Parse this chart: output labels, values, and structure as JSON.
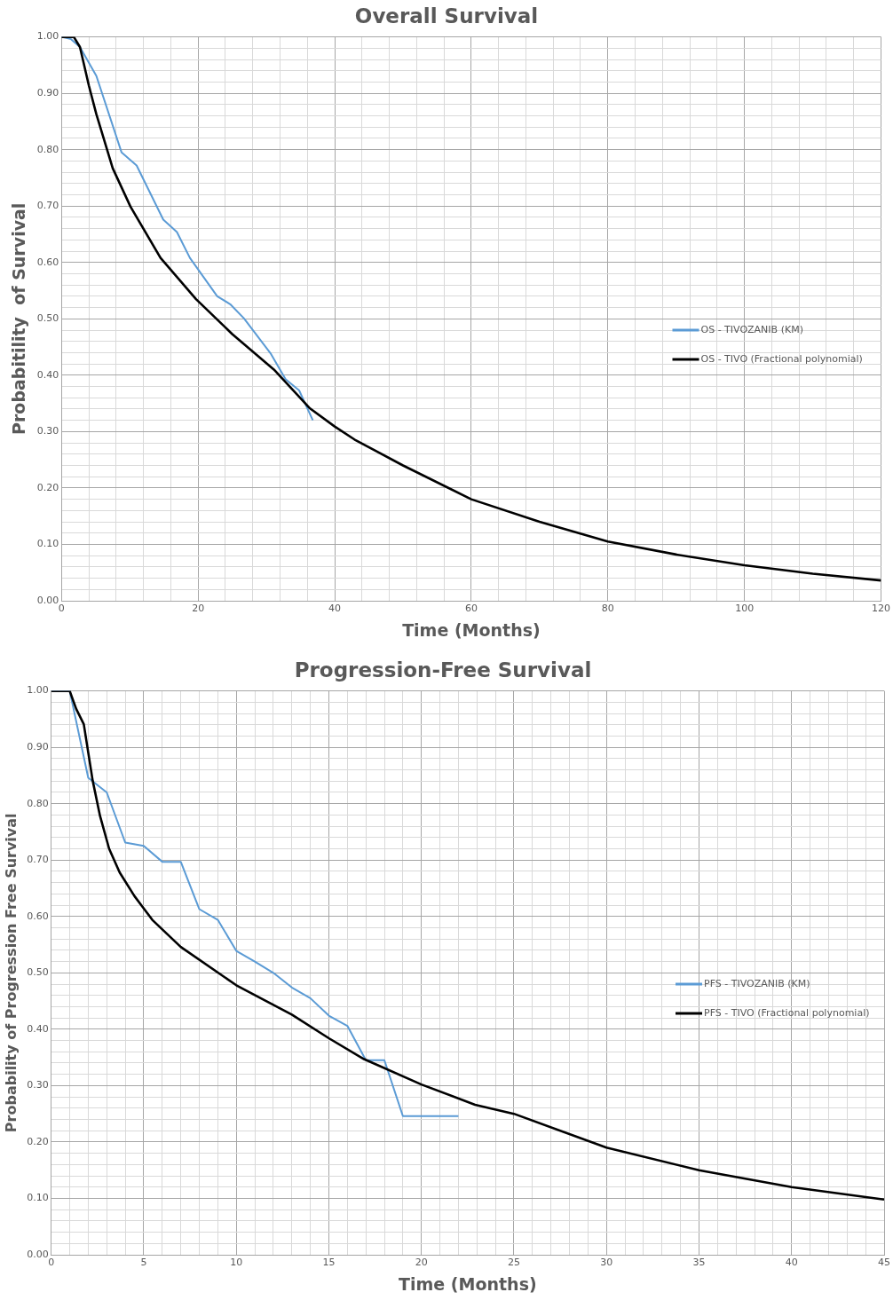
{
  "chart_data": [
    {
      "type": "line",
      "title": "Overall Survival",
      "xlabel": "Time (Months)",
      "ylabel": "Probabitility  of Survival",
      "xlim": [
        0,
        120
      ],
      "xticks": [
        0,
        {
          "value": 4,
          "label": null
        },
        {
          "value": 8,
          "label": null
        },
        {
          "value": 12,
          "label": null
        },
        {
          "value": 16,
          "label": null
        },
        20,
        {
          "value": 24,
          "label": null
        },
        {
          "value": 28,
          "label": null
        },
        {
          "value": 32,
          "label": null
        },
        {
          "value": 36,
          "label": null
        },
        40,
        {
          "value": 44,
          "label": null
        },
        {
          "value": 48,
          "label": null
        },
        {
          "value": 52,
          "label": null
        },
        {
          "value": 56,
          "label": null
        },
        60,
        {
          "value": 64,
          "label": null
        },
        {
          "value": 68,
          "label": null
        },
        {
          "value": 72,
          "label": null
        },
        {
          "value": 76,
          "label": null
        },
        80,
        {
          "value": 84,
          "label": null
        },
        {
          "value": 88,
          "label": null
        },
        {
          "value": 92,
          "label": null
        },
        {
          "value": 96,
          "label": null
        },
        100,
        {
          "value": 104,
          "label": null
        },
        {
          "value": 108,
          "label": null
        },
        {
          "value": 112,
          "label": null
        },
        {
          "value": 116,
          "label": null
        },
        120
      ],
      "ylim": [
        0,
        1
      ],
      "yticks": [
        {
          "value": 0,
          "label": "0.00"
        },
        {
          "value": 0.02,
          "label": null
        },
        {
          "value": 0.04,
          "label": null
        },
        {
          "value": 0.06,
          "label": null
        },
        {
          "value": 0.08,
          "label": null
        },
        {
          "value": 0.1,
          "label": "0.10"
        },
        {
          "value": 0.12,
          "label": null
        },
        {
          "value": 0.14,
          "label": null
        },
        {
          "value": 0.16,
          "label": null
        },
        {
          "value": 0.18,
          "label": null
        },
        {
          "value": 0.2,
          "label": "0.20"
        },
        {
          "value": 0.22,
          "label": null
        },
        {
          "value": 0.24,
          "label": null
        },
        {
          "value": 0.26,
          "label": null
        },
        {
          "value": 0.28,
          "label": null
        },
        {
          "value": 0.3,
          "label": "0.30"
        },
        {
          "value": 0.32,
          "label": null
        },
        {
          "value": 0.34,
          "label": null
        },
        {
          "value": 0.36,
          "label": null
        },
        {
          "value": 0.38,
          "label": null
        },
        {
          "value": 0.4,
          "label": "0.40"
        },
        {
          "value": 0.42,
          "label": null
        },
        {
          "value": 0.44,
          "label": null
        },
        {
          "value": 0.46,
          "label": null
        },
        {
          "value": 0.48,
          "label": null
        },
        {
          "value": 0.5,
          "label": "0.50"
        },
        {
          "value": 0.52,
          "label": null
        },
        {
          "value": 0.54,
          "label": null
        },
        {
          "value": 0.56,
          "label": null
        },
        {
          "value": 0.58,
          "label": null
        },
        {
          "value": 0.6,
          "label": "0.60"
        },
        {
          "value": 0.62,
          "label": null
        },
        {
          "value": 0.64,
          "label": null
        },
        {
          "value": 0.66,
          "label": null
        },
        {
          "value": 0.68,
          "label": null
        },
        {
          "value": 0.7,
          "label": "0.70"
        },
        {
          "value": 0.72,
          "label": null
        },
        {
          "value": 0.74,
          "label": null
        },
        {
          "value": 0.76,
          "label": null
        },
        {
          "value": 0.78,
          "label": null
        },
        {
          "value": 0.8,
          "label": "0.80"
        },
        {
          "value": 0.82,
          "label": null
        },
        {
          "value": 0.84,
          "label": null
        },
        {
          "value": 0.86,
          "label": null
        },
        {
          "value": 0.88,
          "label": null
        },
        {
          "value": 0.9,
          "label": "0.90"
        },
        {
          "value": 0.92,
          "label": null
        },
        {
          "value": 0.94,
          "label": null
        },
        {
          "value": 0.96,
          "label": null
        },
        {
          "value": 0.98,
          "label": null
        },
        {
          "value": 1,
          "label": "1.00"
        }
      ],
      "grid": true,
      "legend": "right",
      "marker": "none",
      "line_style": "solid",
      "series": [
        {
          "name": "OS - TIVOZANIB (KM)",
          "color": "#5b9bd5",
          "x": [
            0,
            1.4,
            2.7,
            5.1,
            8.8,
            11,
            14.9,
            16.9,
            18.8,
            22.8,
            24.7,
            26.7,
            30.6,
            32.8,
            34.8,
            36.8
          ],
          "values": [
            1,
            0.996,
            0.982,
            0.931,
            0.795,
            0.772,
            0.676,
            0.654,
            0.608,
            0.54,
            0.526,
            0.501,
            0.439,
            0.393,
            0.373,
            0.32
          ]
        },
        {
          "name": "OS - TIVO (Fractional polynomial)",
          "color": "#000000",
          "x": [
            0,
            1.8,
            2.7,
            4,
            5.1,
            7.5,
            10.1,
            14.5,
            19.7,
            25,
            31.1,
            36.3,
            40,
            42.9,
            50,
            60,
            70,
            80,
            90,
            100,
            110,
            120
          ],
          "values": [
            1,
            1,
            0.982,
            0.914,
            0.863,
            0.767,
            0.699,
            0.608,
            0.535,
            0.473,
            0.41,
            0.342,
            0.309,
            0.286,
            0.24,
            0.18,
            0.14,
            0.105,
            0.082,
            0.063,
            0.048,
            0.036
          ]
        }
      ]
    },
    {
      "type": "line",
      "title": "Progression-Free Survival",
      "xlabel": "Time (Months)",
      "ylabel": "Probability of Progression Free Survival",
      "xlim": [
        0,
        45
      ],
      "xticks": [
        0,
        {
          "value": 1,
          "label": null
        },
        {
          "value": 2,
          "label": null
        },
        {
          "value": 3,
          "label": null
        },
        {
          "value": 4,
          "label": null
        },
        5,
        {
          "value": 6,
          "label": null
        },
        {
          "value": 7,
          "label": null
        },
        {
          "value": 8,
          "label": null
        },
        {
          "value": 9,
          "label": null
        },
        10,
        {
          "value": 11,
          "label": null
        },
        {
          "value": 12,
          "label": null
        },
        {
          "value": 13,
          "label": null
        },
        {
          "value": 14,
          "label": null
        },
        15,
        {
          "value": 16,
          "label": null
        },
        {
          "value": 17,
          "label": null
        },
        {
          "value": 18,
          "label": null
        },
        {
          "value": 19,
          "label": null
        },
        20,
        {
          "value": 21,
          "label": null
        },
        {
          "value": 22,
          "label": null
        },
        {
          "value": 23,
          "label": null
        },
        {
          "value": 24,
          "label": null
        },
        25,
        {
          "value": 26,
          "label": null
        },
        {
          "value": 27,
          "label": null
        },
        {
          "value": 28,
          "label": null
        },
        {
          "value": 29,
          "label": null
        },
        30,
        {
          "value": 31,
          "label": null
        },
        {
          "value": 32,
          "label": null
        },
        {
          "value": 33,
          "label": null
        },
        {
          "value": 34,
          "label": null
        },
        35,
        {
          "value": 36,
          "label": null
        },
        {
          "value": 37,
          "label": null
        },
        {
          "value": 38,
          "label": null
        },
        {
          "value": 39,
          "label": null
        },
        40,
        {
          "value": 41,
          "label": null
        },
        {
          "value": 42,
          "label": null
        },
        {
          "value": 43,
          "label": null
        },
        {
          "value": 44,
          "label": null
        },
        45
      ],
      "ylim": [
        0,
        1
      ],
      "yticks": [
        {
          "value": 0,
          "label": "0.00"
        },
        {
          "value": 0.02,
          "label": null
        },
        {
          "value": 0.04,
          "label": null
        },
        {
          "value": 0.06,
          "label": null
        },
        {
          "value": 0.08,
          "label": null
        },
        {
          "value": 0.1,
          "label": "0.10"
        },
        {
          "value": 0.12,
          "label": null
        },
        {
          "value": 0.14,
          "label": null
        },
        {
          "value": 0.16,
          "label": null
        },
        {
          "value": 0.18,
          "label": null
        },
        {
          "value": 0.2,
          "label": "0.20"
        },
        {
          "value": 0.22,
          "label": null
        },
        {
          "value": 0.24,
          "label": null
        },
        {
          "value": 0.26,
          "label": null
        },
        {
          "value": 0.28,
          "label": null
        },
        {
          "value": 0.3,
          "label": "0.30"
        },
        {
          "value": 0.32,
          "label": null
        },
        {
          "value": 0.34,
          "label": null
        },
        {
          "value": 0.36,
          "label": null
        },
        {
          "value": 0.38,
          "label": null
        },
        {
          "value": 0.4,
          "label": "0.40"
        },
        {
          "value": 0.42,
          "label": null
        },
        {
          "value": 0.44,
          "label": null
        },
        {
          "value": 0.46,
          "label": null
        },
        {
          "value": 0.48,
          "label": null
        },
        {
          "value": 0.5,
          "label": "0.50"
        },
        {
          "value": 0.52,
          "label": null
        },
        {
          "value": 0.54,
          "label": null
        },
        {
          "value": 0.56,
          "label": null
        },
        {
          "value": 0.58,
          "label": null
        },
        {
          "value": 0.6,
          "label": "0.60"
        },
        {
          "value": 0.62,
          "label": null
        },
        {
          "value": 0.64,
          "label": null
        },
        {
          "value": 0.66,
          "label": null
        },
        {
          "value": 0.68,
          "label": null
        },
        {
          "value": 0.7,
          "label": "0.70"
        },
        {
          "value": 0.72,
          "label": null
        },
        {
          "value": 0.74,
          "label": null
        },
        {
          "value": 0.76,
          "label": null
        },
        {
          "value": 0.78,
          "label": null
        },
        {
          "value": 0.8,
          "label": "0.80"
        },
        {
          "value": 0.82,
          "label": null
        },
        {
          "value": 0.84,
          "label": null
        },
        {
          "value": 0.86,
          "label": null
        },
        {
          "value": 0.88,
          "label": null
        },
        {
          "value": 0.9,
          "label": "0.90"
        },
        {
          "value": 0.92,
          "label": null
        },
        {
          "value": 0.94,
          "label": null
        },
        {
          "value": 0.96,
          "label": null
        },
        {
          "value": 0.98,
          "label": null
        },
        {
          "value": 1,
          "label": "1.00"
        }
      ],
      "grid": true,
      "legend": "right",
      "marker": "none",
      "line_style": "solid",
      "series": [
        {
          "name": "PFS - TIVOZANIB (KM)",
          "color": "#5b9bd5",
          "x": [
            0,
            1,
            2,
            3,
            4,
            5,
            6,
            7,
            8,
            9,
            10,
            11,
            12,
            13,
            14,
            15,
            16,
            17,
            18,
            19,
            22
          ],
          "values": [
            1,
            1,
            0.846,
            0.82,
            0.731,
            0.725,
            0.697,
            0.697,
            0.613,
            0.594,
            0.539,
            0.52,
            0.5,
            0.474,
            0.455,
            0.424,
            0.406,
            0.345,
            0.345,
            0.246,
            0.246
          ]
        },
        {
          "name": "PFS - TIVO (Fractional polynomial)",
          "color": "#000000",
          "x": [
            0,
            1,
            1.35,
            1.76,
            2.24,
            2.64,
            3.13,
            3.7,
            4.5,
            5.46,
            7,
            10,
            13,
            15,
            16.9,
            20,
            22.9,
            25,
            30,
            35,
            40,
            45
          ],
          "values": [
            1,
            1,
            0.968,
            0.941,
            0.841,
            0.778,
            0.72,
            0.678,
            0.636,
            0.594,
            0.546,
            0.478,
            0.426,
            0.384,
            0.347,
            0.302,
            0.266,
            0.25,
            0.19,
            0.15,
            0.12,
            0.098
          ]
        }
      ]
    }
  ]
}
